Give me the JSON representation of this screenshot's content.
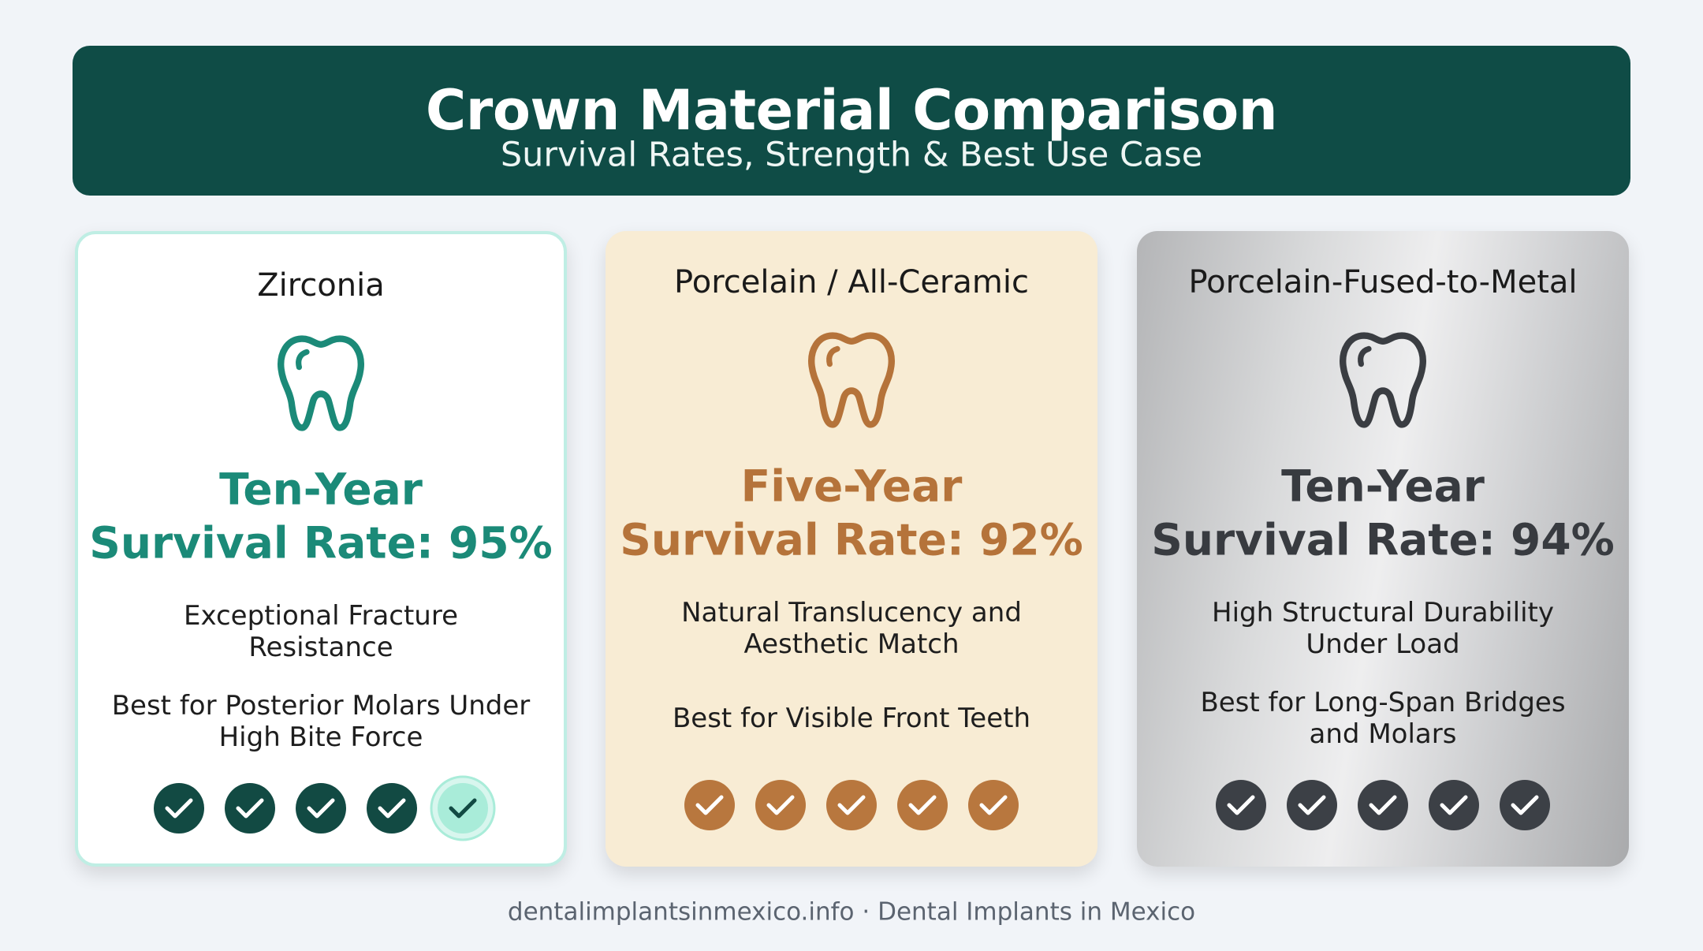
{
  "header": {
    "title": "Crown Material Comparison",
    "subtitle": "Survival Rates, Strength & Best Use Case"
  },
  "cards": [
    {
      "title": "Zirconia",
      "heading": "Ten-Year",
      "rate": "Survival Rate: 95%",
      "feature": [
        "Exceptional Fracture",
        "Resistance"
      ],
      "best_for": [
        "Best for Posterior Molars Under",
        "High Bite Force"
      ]
    },
    {
      "title": "Porcelain / All-Ceramic",
      "heading": "Five-Year",
      "rate": "Survival Rate: 92%",
      "feature": [
        "Natural Translucency and",
        "Aesthetic Match"
      ],
      "best_for": [
        "Best for Visible Front Teeth"
      ]
    },
    {
      "title": "Porcelain-Fused-to-Metal",
      "heading": "Ten-Year",
      "rate": "Survival Rate: 94%",
      "feature": [
        "High Structural Durability",
        "Under Load"
      ],
      "best_for": [
        "Best for Long-Span Bridges",
        "and Molars"
      ]
    }
  ],
  "footer": "dentalimplantsinmexico.info · Dental Implants in Mexico"
}
